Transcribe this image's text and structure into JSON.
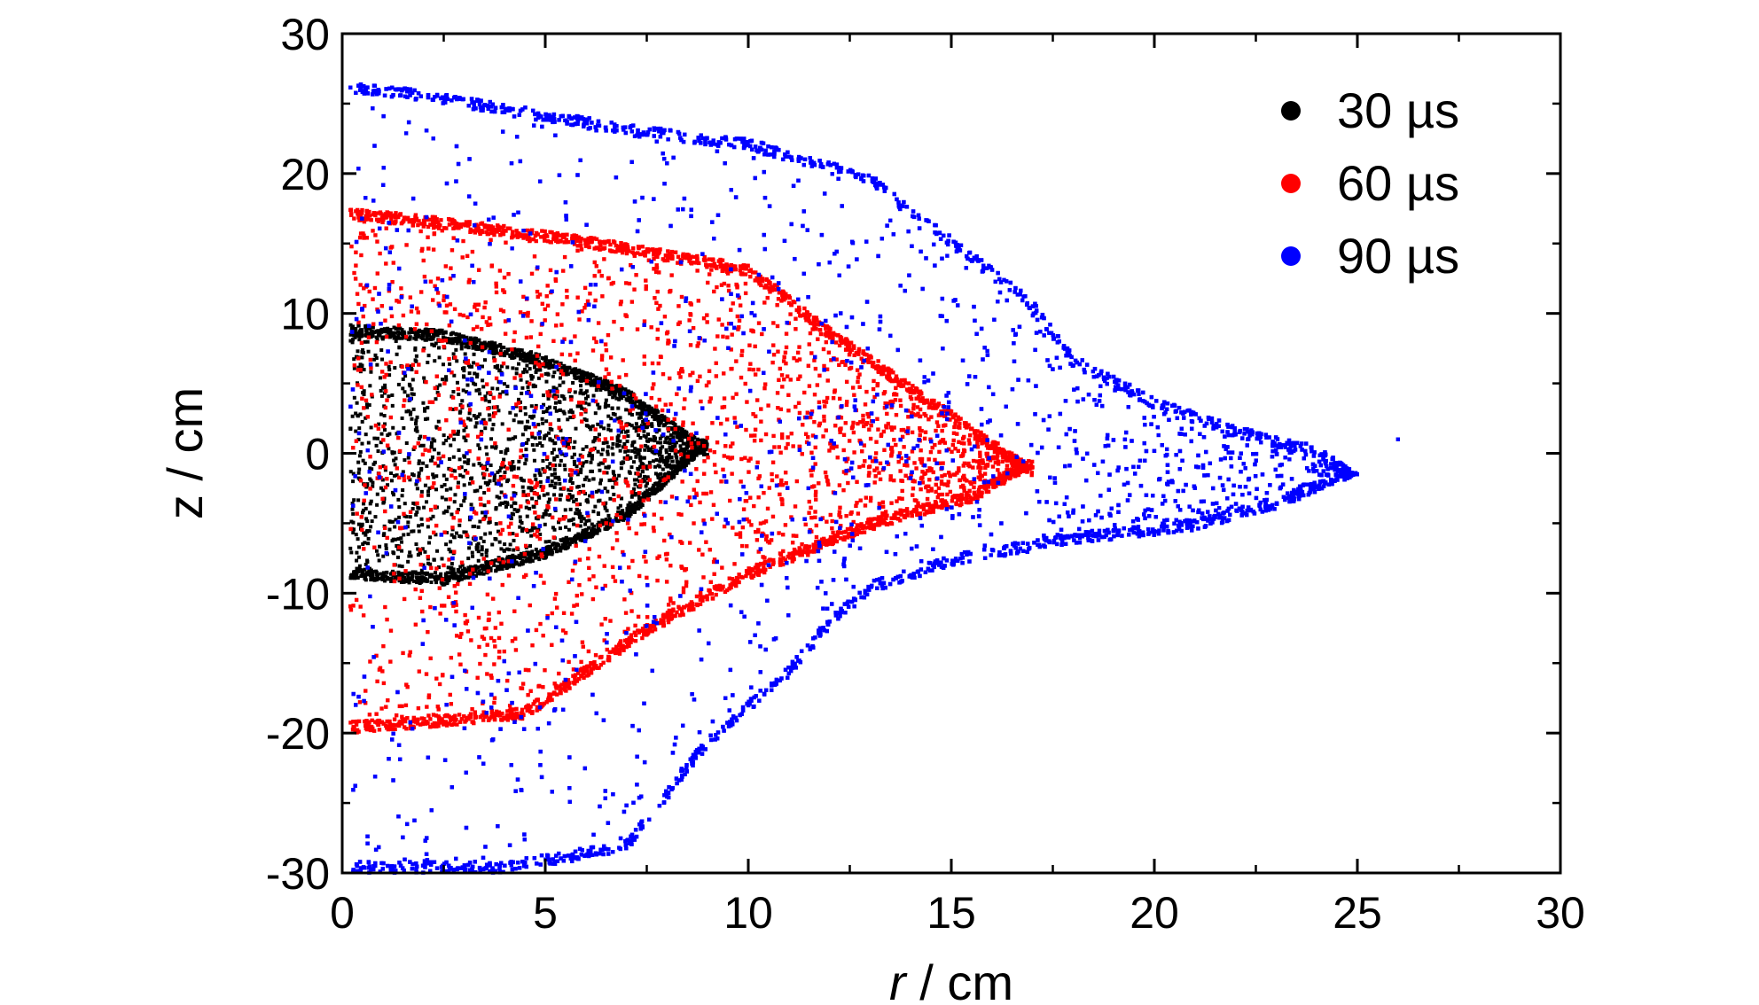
{
  "chart_data": {
    "type": "scatter",
    "title": "",
    "xlabel_var": "r",
    "xlabel_unit": " / cm",
    "ylabel": "z / cm",
    "xlim": [
      0,
      30
    ],
    "ylim": [
      -30,
      30
    ],
    "xticks": [
      0,
      5,
      10,
      15,
      20,
      25,
      30
    ],
    "yticks": [
      30,
      20,
      10,
      0,
      -10,
      -20,
      -30
    ],
    "xtick_labels": [
      "0",
      "5",
      "10",
      "15",
      "20",
      "25",
      "30"
    ],
    "ytick_labels": [
      "30",
      "20",
      "10",
      "0",
      "-10",
      "-20",
      "-30"
    ],
    "legend_position": "top-right",
    "grid": false,
    "series": [
      {
        "name": "30 µs",
        "color": "#000000",
        "shape": {
          "tip": [
            9.0,
            0.5
          ],
          "upper_edge": [
            [
              0.2,
              9.2
            ],
            [
              2.5,
              8.8
            ],
            [
              5.0,
              7.0
            ],
            [
              7.0,
              4.6
            ],
            [
              9.0,
              0.5
            ]
          ],
          "lower_edge": [
            [
              0.2,
              -9.0
            ],
            [
              2.5,
              -9.4
            ],
            [
              5.0,
              -7.5
            ],
            [
              7.0,
              -4.8
            ],
            [
              9.0,
              0.5
            ]
          ]
        },
        "points": 3200
      },
      {
        "name": "60 µs",
        "color": "#ff0000",
        "shape": {
          "tip": [
            17.0,
            -1.0
          ],
          "upper_edge": [
            [
              0.2,
              17.5
            ],
            [
              2.0,
              17.0
            ],
            [
              6.0,
              15.5
            ],
            [
              10.0,
              13.5
            ],
            [
              12.0,
              9.0
            ],
            [
              15.0,
              3.0
            ],
            [
              17.0,
              -1.0
            ]
          ],
          "lower_edge": [
            [
              0.2,
              -20.0
            ],
            [
              2.5,
              -19.5
            ],
            [
              4.5,
              -19.0
            ],
            [
              7.5,
              -13.0
            ],
            [
              10.0,
              -9.0
            ],
            [
              13.0,
              -5.5
            ],
            [
              15.5,
              -3.5
            ],
            [
              17.0,
              -1.0
            ]
          ]
        },
        "points": 3600
      },
      {
        "name": "90 µs",
        "color": "#0000ff",
        "shape": {
          "tip": [
            25.0,
            -1.5
          ],
          "upper_edge": [
            [
              0.2,
              26.5
            ],
            [
              2.0,
              26.0
            ],
            [
              4.0,
              25.0
            ],
            [
              7.0,
              23.5
            ],
            [
              10.0,
              22.5
            ],
            [
              13.0,
              20.0
            ],
            [
              15.0,
              15.5
            ],
            [
              17.0,
              11.0
            ],
            [
              18.0,
              7.0
            ],
            [
              20.0,
              4.0
            ],
            [
              22.0,
              2.0
            ],
            [
              24.0,
              0.5
            ],
            [
              25.0,
              -1.5
            ]
          ],
          "lower_edge": [
            [
              1.0,
              -30.0
            ],
            [
              4.0,
              -30.0
            ],
            [
              7.0,
              -28.5
            ],
            [
              9.0,
              -21.0
            ],
            [
              11.0,
              -16.0
            ],
            [
              12.0,
              -12.5
            ],
            [
              13.0,
              -10.0
            ],
            [
              15.0,
              -8.0
            ],
            [
              18.0,
              -6.5
            ],
            [
              21.0,
              -5.5
            ],
            [
              23.0,
              -4.0
            ],
            [
              25.0,
              -1.5
            ]
          ]
        },
        "outliers": [
          [
            26.0,
            1.0
          ]
        ],
        "points": 5000
      }
    ]
  }
}
